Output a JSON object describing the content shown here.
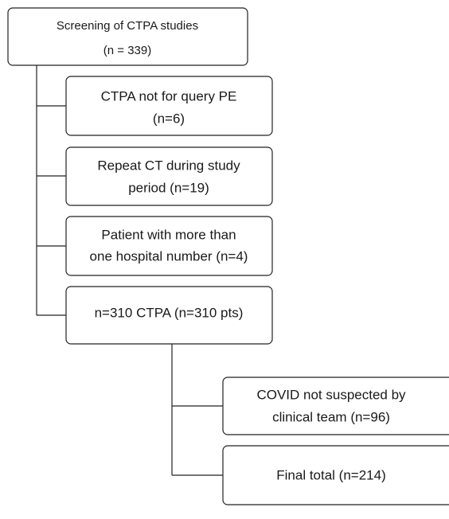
{
  "nodes": [
    {
      "lines": [
        "Screening of CTPA studies",
        "(n = 339)"
      ]
    },
    {
      "lines": [
        "CTPA not for query PE",
        "(n=6)"
      ]
    },
    {
      "lines": [
        "Repeat CT during study",
        "period (n=19)"
      ]
    },
    {
      "lines": [
        "Patient with more than",
        "one hospital number (n=4)"
      ]
    },
    {
      "lines": [
        "n=310 CTPA (n=310 pts)"
      ]
    },
    {
      "lines": [
        "COVID not suspected by",
        "clinical team (n=96)"
      ]
    },
    {
      "lines": [
        "Final total (n=214)"
      ]
    }
  ]
}
